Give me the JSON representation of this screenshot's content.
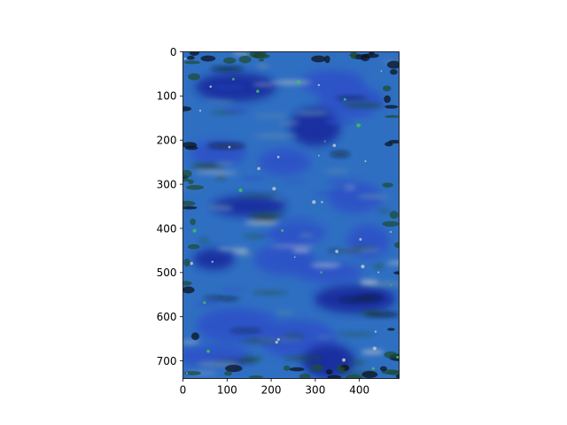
{
  "chart_data": {
    "type": "heatmap",
    "title": "",
    "xlabel": "",
    "ylabel": "",
    "xlim": [
      0,
      490
    ],
    "ylim": [
      740,
      0
    ],
    "x_ticks": [
      0,
      100,
      200,
      300,
      400
    ],
    "y_ticks": [
      0,
      100,
      200,
      300,
      400,
      500,
      600,
      700
    ],
    "grid": false,
    "legend": "none",
    "colors": {
      "deep_blue": "#1a2a9c",
      "royal_blue": "#2d52c8",
      "mid_blue": "#2f6fc2",
      "steel": "#5a86b0",
      "dark_green": "#1e4d38",
      "bright_green": "#3fbf5a",
      "near_black": "#0c1420",
      "pale_gray": "#b8c4cc"
    }
  }
}
